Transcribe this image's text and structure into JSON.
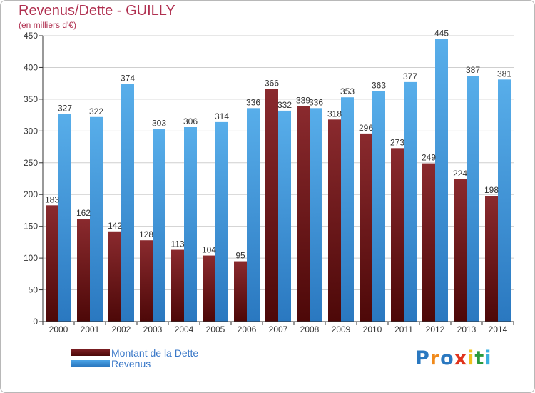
{
  "header": {
    "title": "Revenus/Dette - GUILLY",
    "subtitle": "(en milliers d'€)"
  },
  "colors": {
    "debt": "#7a1e22",
    "debt_dark": "#4d0808",
    "revenue": "#4aa3e6",
    "revenue_dark": "#2a78c0",
    "grid": "#cfcfcf",
    "axis": "#333333",
    "label": "#333333"
  },
  "legend": {
    "debt_label": "Montant de la Dette",
    "revenue_label": "Revenus"
  },
  "brand": {
    "text": "Proxiti",
    "letter_colors": [
      "#2a78c0",
      "#f08a1c",
      "#2a78c0",
      "#e0331c",
      "#f0c01c",
      "#2a9a3c",
      "#3ab0e0"
    ]
  },
  "chart_data": {
    "type": "bar",
    "title": "Revenus/Dette - GUILLY",
    "subtitle": "(en milliers d'€)",
    "categories": [
      "2000",
      "2001",
      "2002",
      "2003",
      "2004",
      "2005",
      "2006",
      "2007",
      "2008",
      "2009",
      "2010",
      "2011",
      "2012",
      "2013",
      "2014"
    ],
    "series": [
      {
        "name": "Montant de la Dette",
        "values": [
          183,
          162,
          142,
          128,
          113,
          104,
          95,
          366,
          339,
          318,
          296,
          273,
          249,
          224,
          198
        ]
      },
      {
        "name": "Revenus",
        "values": [
          327,
          322,
          374,
          303,
          306,
          314,
          336,
          332,
          336,
          353,
          363,
          377,
          445,
          387,
          381
        ]
      }
    ],
    "ylim": [
      0,
      450
    ],
    "yticks": [
      0,
      50,
      100,
      150,
      200,
      250,
      300,
      350,
      400,
      450
    ],
    "grid": true,
    "legend_position": "bottom-left"
  }
}
